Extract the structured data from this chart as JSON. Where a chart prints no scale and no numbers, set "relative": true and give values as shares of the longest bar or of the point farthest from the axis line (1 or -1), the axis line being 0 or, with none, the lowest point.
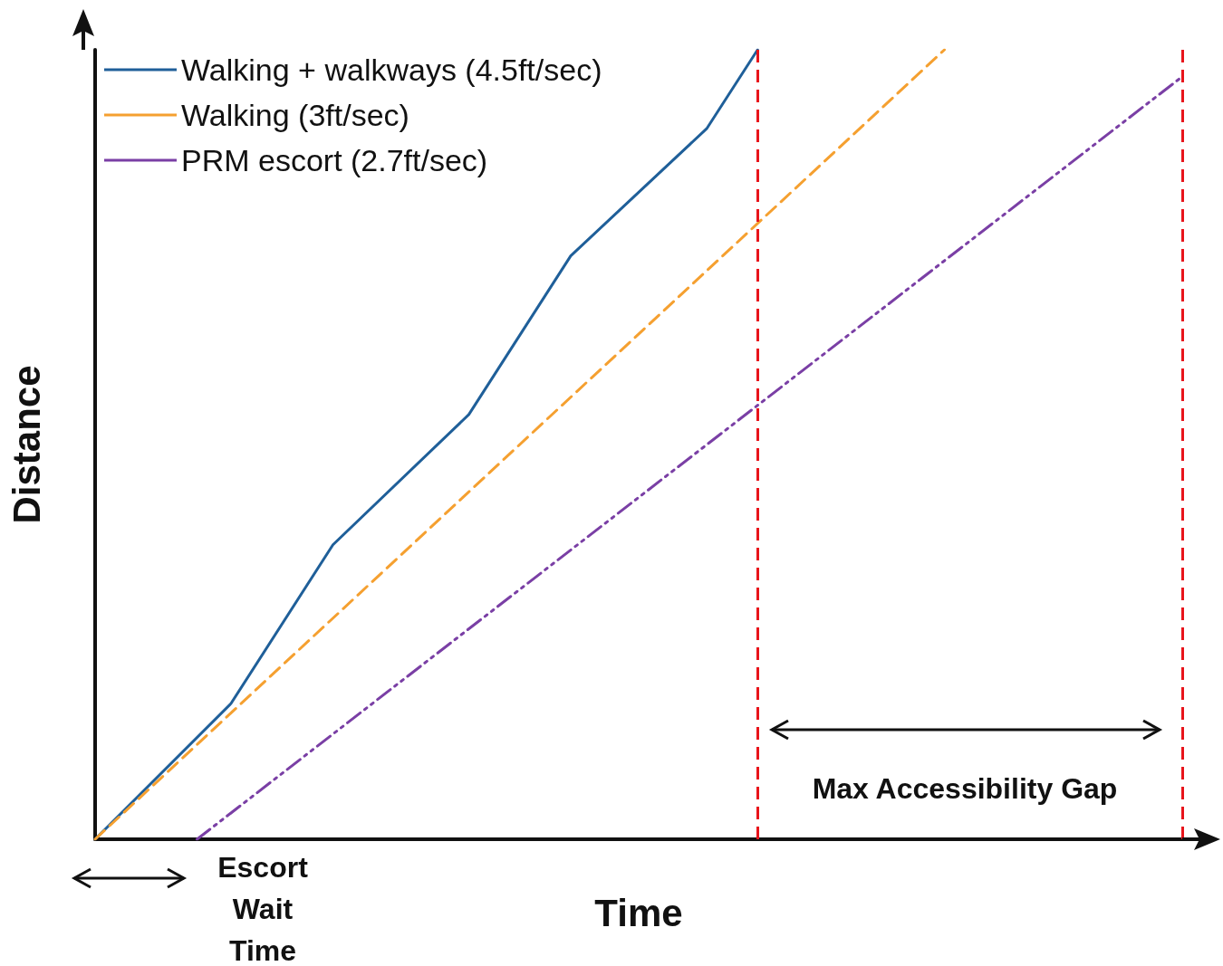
{
  "chart_data": {
    "type": "line",
    "relative": true,
    "xlabel": "Time",
    "ylabel": "Distance",
    "grid": false,
    "legend": "top left",
    "marker": "none",
    "categories": [
      null,
      null,
      null,
      null,
      null,
      null,
      null,
      null,
      null,
      null,
      null,
      null,
      null,
      null,
      null,
      null,
      null,
      null,
      null,
      null,
      null,
      null,
      null,
      null,
      null,
      null,
      null,
      null,
      null,
      null,
      null,
      null,
      null,
      null,
      null,
      null,
      null,
      null,
      null,
      null,
      null,
      null,
      null,
      null,
      null,
      null,
      null,
      null,
      null,
      null,
      null,
      null,
      null,
      null,
      null,
      null,
      null,
      null,
      null,
      null,
      null,
      null,
      null,
      null,
      null
    ],
    "series": [
      {
        "name": "Walking + walkways (4.5ft/sec)",
        "color": "#1f5f99",
        "line_style": "solid",
        "values": [
          0,
          null,
          null,
          null,
          null,
          null,
          null,
          null,
          0.172,
          null,
          null,
          null,
          null,
          null,
          0.373,
          null,
          null,
          null,
          null,
          null,
          null,
          null,
          0.538,
          null,
          null,
          null,
          null,
          null,
          0.739,
          null,
          null,
          null,
          null,
          null,
          null,
          null,
          0.9,
          null,
          null,
          1,
          null,
          null,
          null,
          null,
          null,
          null,
          null,
          null,
          null,
          null,
          null,
          null,
          null,
          null,
          null,
          null,
          null,
          null,
          null,
          null,
          null,
          null,
          null,
          null,
          null
        ]
      },
      {
        "name": "Walking (3ft/sec)",
        "color": "#f5a030",
        "line_style": "dashed",
        "values": [
          0,
          null,
          null,
          null,
          null,
          null,
          null,
          null,
          null,
          null,
          null,
          null,
          null,
          null,
          null,
          null,
          null,
          null,
          null,
          null,
          null,
          null,
          null,
          null,
          null,
          null,
          null,
          null,
          null,
          null,
          null,
          null,
          null,
          null,
          null,
          null,
          null,
          null,
          null,
          null,
          null,
          null,
          null,
          null,
          null,
          null,
          null,
          null,
          null,
          null,
          1,
          null,
          null,
          null,
          null,
          null,
          null,
          null,
          null,
          null,
          null,
          null,
          null,
          null,
          null
        ]
      },
      {
        "name": "PRM escort (2.7ft/sec)",
        "color": "#7a3fa5",
        "line_style": "dotted",
        "values": [
          null,
          null,
          null,
          null,
          null,
          null,
          0,
          null,
          null,
          null,
          null,
          null,
          null,
          null,
          null,
          null,
          null,
          null,
          null,
          null,
          null,
          null,
          null,
          null,
          null,
          null,
          null,
          null,
          null,
          null,
          null,
          null,
          null,
          null,
          null,
          null,
          null,
          null,
          null,
          null,
          null,
          null,
          null,
          null,
          null,
          null,
          null,
          null,
          null,
          null,
          null,
          null,
          null,
          null,
          null,
          null,
          null,
          null,
          null,
          null,
          null,
          null,
          null,
          null,
          0.966
        ]
      }
    ],
    "annotations": [
      "Max Accessibility Gap",
      "Escort Wait Time"
    ]
  }
}
